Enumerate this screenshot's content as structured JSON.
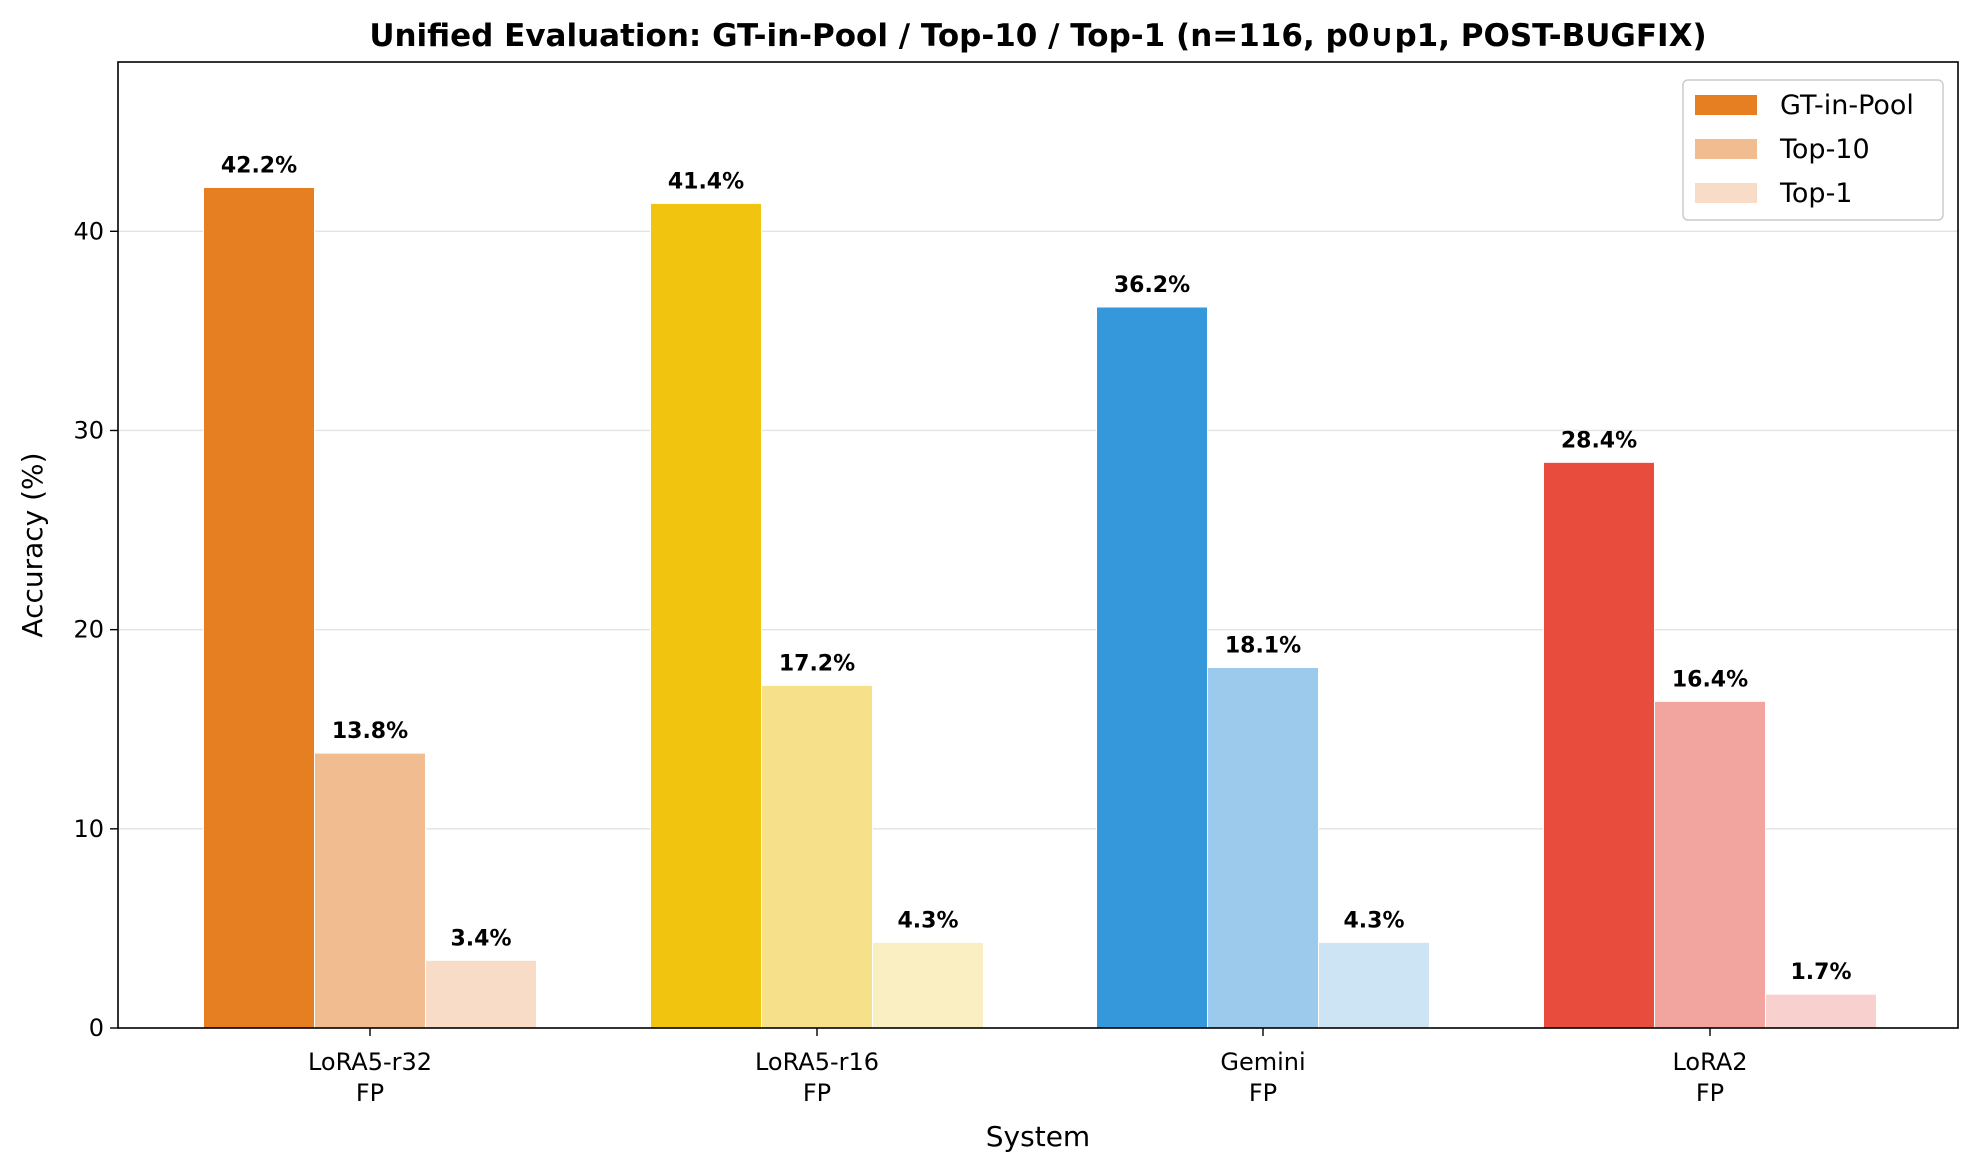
{
  "chart_data": {
    "type": "bar",
    "title": "Unified Evaluation: GT-in-Pool / Top-10 / Top-1  (n=116, p0∪p1, POST-BUGFIX)",
    "xlabel": "System",
    "ylabel": "Accuracy (%)",
    "ylim": [
      0,
      48.5
    ],
    "yticks": [
      "0",
      "10",
      "20",
      "30",
      "40"
    ],
    "grid": "y",
    "legend_position": "top-right",
    "categories": [
      {
        "line1": "LoRA5-r32",
        "line2": "FP"
      },
      {
        "line1": "LoRA5-r16",
        "line2": "FP"
      },
      {
        "line1": "Gemini",
        "line2": "FP"
      },
      {
        "line1": "LoRA2",
        "line2": "FP"
      }
    ],
    "series": [
      {
        "name": "GT-in-Pool",
        "values": [
          42.2,
          41.4,
          36.2,
          28.4
        ],
        "labels": [
          "42.2%",
          "41.4%",
          "36.2%",
          "28.4%"
        ]
      },
      {
        "name": "Top-10",
        "values": [
          13.8,
          17.2,
          18.1,
          16.4
        ],
        "labels": [
          "13.8%",
          "17.2%",
          "18.1%",
          "16.4%"
        ]
      },
      {
        "name": "Top-1",
        "values": [
          3.4,
          4.3,
          4.3,
          1.7
        ],
        "labels": [
          "3.4%",
          "4.3%",
          "4.3%",
          "1.7%"
        ]
      }
    ],
    "colors": [
      [
        "#e67e22",
        "#f2bc91",
        "#f8dcc7"
      ],
      [
        "#f1c40f",
        "#f6e08a",
        "#faefc3"
      ],
      [
        "#3498db",
        "#9bcaec",
        "#cde4f5"
      ],
      [
        "#e74c3c",
        "#f2a59e",
        "#f8d0cd"
      ]
    ],
    "legend_colors": [
      "#e67e22",
      "#f2bc91",
      "#f8dcc7"
    ]
  }
}
